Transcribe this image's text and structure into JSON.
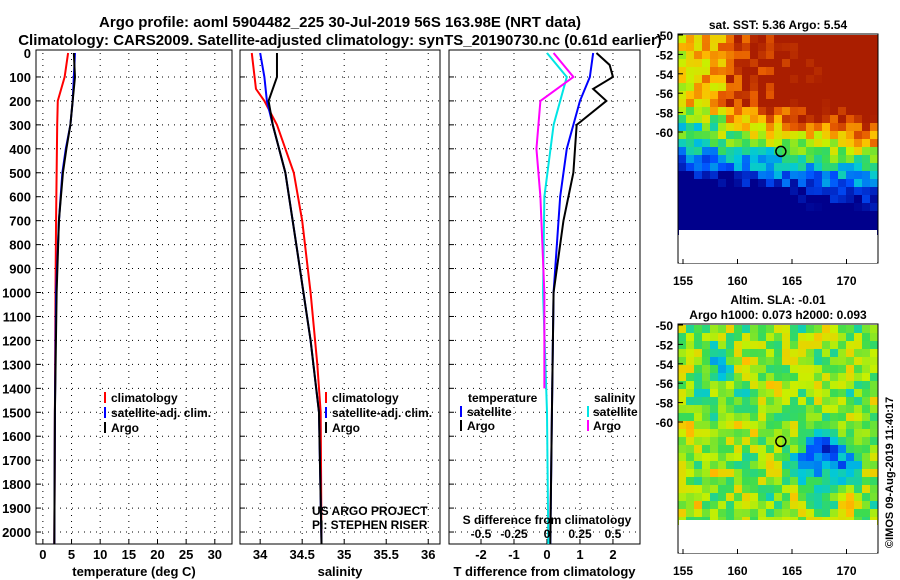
{
  "title_line1": "Argo profile: aoml 5904482_225 30-Jul-2019 56S 163.98E (NRT data)",
  "title_line2": "Climatology: CARS2009. Satellite-adjusted climatology: synTS_20190730.nc (0.61d earlier)",
  "colors": {
    "climatology": "#ff0000",
    "satellite": "#0000ff",
    "argo": "#000000",
    "sal_satellite": "#00e5e5",
    "sal_argo": "#ff00ff"
  },
  "chart_data": [
    {
      "type": "line",
      "name": "temperature",
      "xlabel": "temperature (deg C)",
      "ylabel": "depth",
      "xlim": [
        -1.2,
        33
      ],
      "ylim": [
        2050,
        0
      ],
      "xticks": [
        0,
        5,
        10,
        15,
        20,
        25,
        30
      ],
      "yticks": [
        0,
        100,
        200,
        300,
        400,
        500,
        600,
        700,
        800,
        900,
        1000,
        1100,
        1200,
        1300,
        1400,
        1500,
        1600,
        1700,
        1800,
        1900,
        2000
      ],
      "legend": [
        "climatology",
        "satellite-adj. clim.",
        "Argo"
      ],
      "series": [
        {
          "name": "climatology",
          "color": "#ff0000",
          "depth": [
            0,
            100,
            200,
            300,
            500,
            700,
            1000,
            1500,
            2050
          ],
          "values": [
            4.4,
            3.8,
            2.6,
            2.5,
            2.4,
            2.3,
            2.2,
            2.1,
            2.0
          ]
        },
        {
          "name": "satellite-adj. clim.",
          "color": "#0000ff",
          "depth": [
            0,
            100,
            200,
            300,
            400,
            500,
            700,
            1000,
            1500,
            2050
          ],
          "values": [
            5.6,
            5.4,
            5.2,
            4.8,
            4.0,
            3.4,
            2.8,
            2.3,
            2.1,
            2.0
          ]
        },
        {
          "name": "Argo",
          "color": "#000000",
          "depth": [
            0,
            100,
            200,
            300,
            400,
            500,
            700,
            1000,
            1500,
            2050
          ],
          "values": [
            5.4,
            5.6,
            5.2,
            4.8,
            4.1,
            3.5,
            2.8,
            2.4,
            2.1,
            2.0
          ]
        }
      ]
    },
    {
      "type": "line",
      "name": "salinity",
      "xlabel": "salinity",
      "xlim": [
        33.76,
        36.14
      ],
      "ylim": [
        2050,
        0
      ],
      "xticks": [
        34,
        34.5,
        35,
        35.5,
        36
      ],
      "legend": [
        "climatology",
        "satellite-adj. clim.",
        "Argo"
      ],
      "annotation": [
        "US ARGO PROJECT",
        "PI: STEPHEN RISER"
      ],
      "series": [
        {
          "name": "climatology",
          "color": "#ff0000",
          "depth": [
            0,
            150,
            200,
            300,
            500,
            700,
            1000,
            1300,
            1500,
            2050
          ],
          "values": [
            33.9,
            33.95,
            34.05,
            34.2,
            34.4,
            34.5,
            34.6,
            34.68,
            34.72,
            34.73
          ]
        },
        {
          "name": "satellite-adj. clim.",
          "color": "#0000ff",
          "depth": [
            0,
            100,
            200,
            300,
            500,
            800,
            1200,
            1500,
            2050
          ],
          "values": [
            34.0,
            34.05,
            34.08,
            34.15,
            34.3,
            34.43,
            34.6,
            34.7,
            34.73
          ]
        },
        {
          "name": "Argo",
          "color": "#000000",
          "depth": [
            0,
            100,
            200,
            300,
            500,
            800,
            1200,
            1500,
            2050
          ],
          "values": [
            34.2,
            34.2,
            34.1,
            34.15,
            34.3,
            34.43,
            34.6,
            34.7,
            34.73
          ]
        }
      ]
    },
    {
      "type": "line",
      "name": "difference",
      "xlabel": "T difference from climatology",
      "xlim": [
        -2.97,
        2.82
      ],
      "ylim": [
        2050,
        0
      ],
      "xticks": [
        -2,
        -1,
        0,
        1,
        2
      ],
      "s_label": "S difference from climatology",
      "s_ticks": [
        "-0.5",
        "-0.25",
        "0",
        "0.25",
        "0.5"
      ],
      "legend_t_title": "temperature",
      "legend_s_title": "salinity",
      "legend_t": [
        "satellite",
        "Argo"
      ],
      "legend_s": [
        "satellite",
        "Argo"
      ],
      "series": [
        {
          "name": "T satellite",
          "color": "#0000ff",
          "scale": "T",
          "depth": [
            0,
            100,
            200,
            400,
            600,
            1000,
            1500,
            2050
          ],
          "values": [
            1.4,
            1.3,
            1.0,
            0.6,
            0.4,
            0.2,
            0.15,
            0.1
          ]
        },
        {
          "name": "T Argo",
          "color": "#000000",
          "scale": "T",
          "depth": [
            0,
            50,
            100,
            150,
            200,
            300,
            500,
            700,
            1000,
            1500,
            2050
          ],
          "values": [
            1.5,
            1.9,
            2.0,
            1.4,
            1.8,
            0.9,
            0.8,
            0.5,
            0.2,
            0.15,
            0.1
          ]
        },
        {
          "name": "S satellite",
          "color": "#00e5e5",
          "scale": "S",
          "depth": [
            0,
            100,
            300,
            600,
            1000,
            1500,
            2050
          ],
          "values": [
            0.0,
            0.15,
            0.05,
            -0.02,
            -0.03,
            0.0,
            0.01
          ]
        },
        {
          "name": "S Argo",
          "color": "#ff00ff",
          "scale": "S",
          "depth": [
            0,
            100,
            200,
            400,
            600,
            1000,
            1400
          ],
          "values": [
            0.05,
            0.2,
            -0.05,
            -0.08,
            -0.05,
            -0.02,
            -0.02
          ]
        }
      ]
    },
    {
      "type": "heatmap",
      "name": "sst-map",
      "title": "sat. SST: 5.36 Argo: 5.54",
      "xticks": [
        "155",
        "160",
        "165",
        "170"
      ],
      "yticks": [
        "-50",
        "-52",
        "-54",
        "-56",
        "-58",
        "-60"
      ],
      "marker": {
        "lon": 163.98,
        "lat": -56
      }
    },
    {
      "type": "heatmap",
      "name": "sla-map",
      "title1": "Altim. SLA: -0.01",
      "title2": "Argo h1000: 0.073 h2000: 0.093",
      "xticks": [
        "155",
        "160",
        "165",
        "170"
      ],
      "yticks": [
        "-50",
        "-52",
        "-54",
        "-56",
        "-58",
        "-60"
      ],
      "marker": {
        "lon": 163.98,
        "lat": -56
      }
    }
  ],
  "watermark": "©IMOS 09-Aug-2019 11:40:17"
}
